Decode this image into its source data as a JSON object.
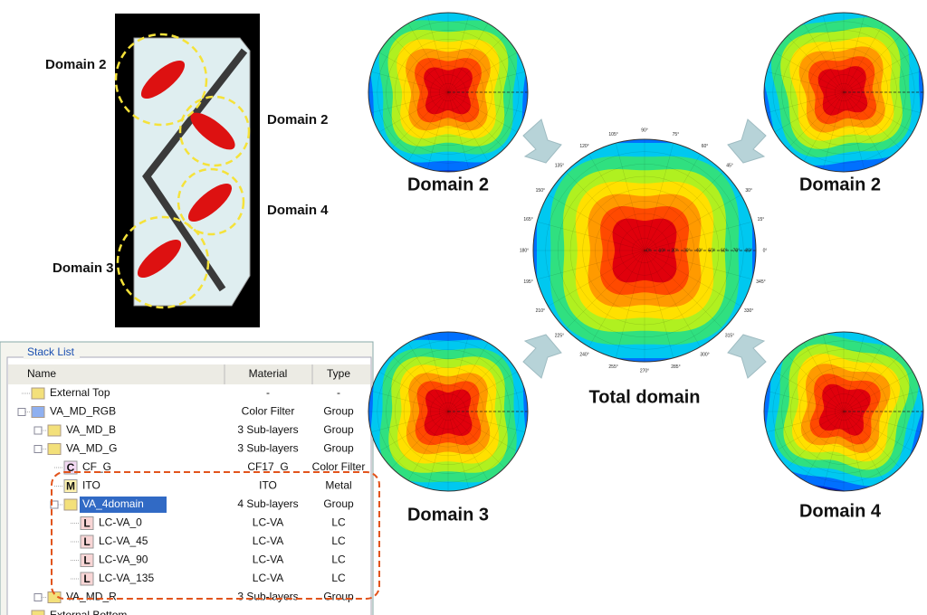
{
  "pixel": {
    "labels": [
      "Domain 2",
      "Domain 2",
      "Domain 4",
      "Domain 3"
    ]
  },
  "stack_list": {
    "title": "Stack List",
    "columns": [
      "Name",
      "Material",
      "Type"
    ],
    "rows": [
      {
        "name": "External Top",
        "material": "-",
        "type": "-"
      },
      {
        "name": "VA_MD_RGB",
        "material": "Color Filter",
        "type": "Group"
      },
      {
        "name": "VA_MD_B",
        "material": "3 Sub-layers",
        "type": "Group"
      },
      {
        "name": "VA_MD_G",
        "material": "3 Sub-layers",
        "type": "Group"
      },
      {
        "name": "CF_G",
        "material": "CF17_G",
        "type": "Color Filter",
        "icon": "C"
      },
      {
        "name": "ITO",
        "material": "ITO",
        "type": "Metal",
        "icon": "M"
      },
      {
        "name": "VA_4domain",
        "material": "4 Sub-layers",
        "type": "Group"
      },
      {
        "name": "LC-VA_0",
        "material": "LC-VA",
        "type": "LC",
        "icon": "L"
      },
      {
        "name": "LC-VA_45",
        "material": "LC-VA",
        "type": "LC",
        "icon": "L"
      },
      {
        "name": "LC-VA_90",
        "material": "LC-VA",
        "type": "LC",
        "icon": "L"
      },
      {
        "name": "LC-VA_135",
        "material": "LC-VA",
        "type": "LC",
        "icon": "L"
      },
      {
        "name": "VA_MD_R",
        "material": "3 Sub-layers",
        "type": "Group"
      },
      {
        "name": "External Bottom",
        "material": "-",
        "type": "-"
      }
    ]
  },
  "plots": {
    "labels": [
      "Domain 2",
      "Domain 2",
      "Domain 3",
      "Domain 4",
      "Total domain"
    ],
    "angle_labels": [
      "0°",
      "15°",
      "30°",
      "45°",
      "60°",
      "75°",
      "90°",
      "105°",
      "120°",
      "135°",
      "150°",
      "165°",
      "180°",
      "195°",
      "210°",
      "225°",
      "240°",
      "255°",
      "270°",
      "285°",
      "300°",
      "315°",
      "330°",
      "345°"
    ],
    "radial_labels": [
      "0°",
      "10°",
      "20°",
      "30°",
      "40°",
      "50°",
      "60°",
      "70°",
      "80°"
    ]
  }
}
